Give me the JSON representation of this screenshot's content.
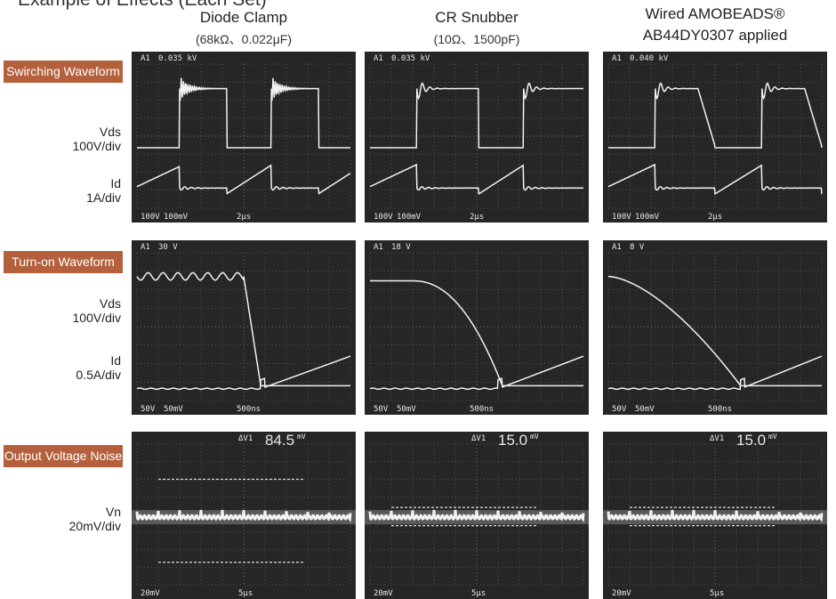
{
  "header": {
    "title": "Example of Effects (Each Set)"
  },
  "columns": [
    {
      "title": "Diode Clamp",
      "subtitle": "(68kΩ、0.022μF)"
    },
    {
      "title": "CR Snubber",
      "subtitle": "(10Ω、1500pF)"
    },
    {
      "title": "Wired AMOBEADS®",
      "subtitle": "AB44DY0307 applied"
    }
  ],
  "rows": [
    {
      "label": "Swirching Waveform",
      "traces": [
        {
          "name": "Vds",
          "scale": "100V/div"
        },
        {
          "name": "Id",
          "scale": "1A/div"
        }
      ],
      "screens": [
        {
          "top": [
            "A1",
            "0.035 kV"
          ],
          "bottom": [
            "100V",
            "100mV",
            "2μs"
          ]
        },
        {
          "top": [
            "A1",
            "0.035 kV"
          ],
          "bottom": [
            "100V",
            "100mV",
            "2μs"
          ]
        },
        {
          "top": [
            "A1",
            "0.040 kV"
          ],
          "bottom": [
            "100V",
            "100mV",
            "2μs"
          ]
        }
      ]
    },
    {
      "label": "Turn-on Waveform",
      "traces": [
        {
          "name": "Vds",
          "scale": "100V/div"
        },
        {
          "name": "Id",
          "scale": "0.5A/div"
        }
      ],
      "screens": [
        {
          "top": [
            "A1",
            "30 V"
          ],
          "bottom": [
            "50V",
            "50mV",
            "500ns"
          ]
        },
        {
          "top": [
            "A1",
            "18 V"
          ],
          "bottom": [
            "50V",
            "50mV",
            "500ns"
          ]
        },
        {
          "top": [
            "A1",
            "8 V"
          ],
          "bottom": [
            "50V",
            "50mV",
            "500ns"
          ]
        }
      ]
    },
    {
      "label": "Output Voltage Noise",
      "traces": [
        {
          "name": "Vn",
          "scale": "20mV/div"
        }
      ],
      "screens": [
        {
          "top": [
            "ΔV1"
          ],
          "reading": {
            "value": "84.5",
            "unit": "mV"
          },
          "bottom": [
            "20mV",
            "5μs"
          ]
        },
        {
          "top": [
            "ΔV1"
          ],
          "reading": {
            "value": "15.0",
            "unit": "mV"
          },
          "bottom": [
            "20mV",
            "5μs"
          ]
        },
        {
          "top": [
            "ΔV1"
          ],
          "reading": {
            "value": "15.0",
            "unit": "mV"
          },
          "bottom": [
            "20mV",
            "5μs"
          ]
        }
      ]
    }
  ]
}
